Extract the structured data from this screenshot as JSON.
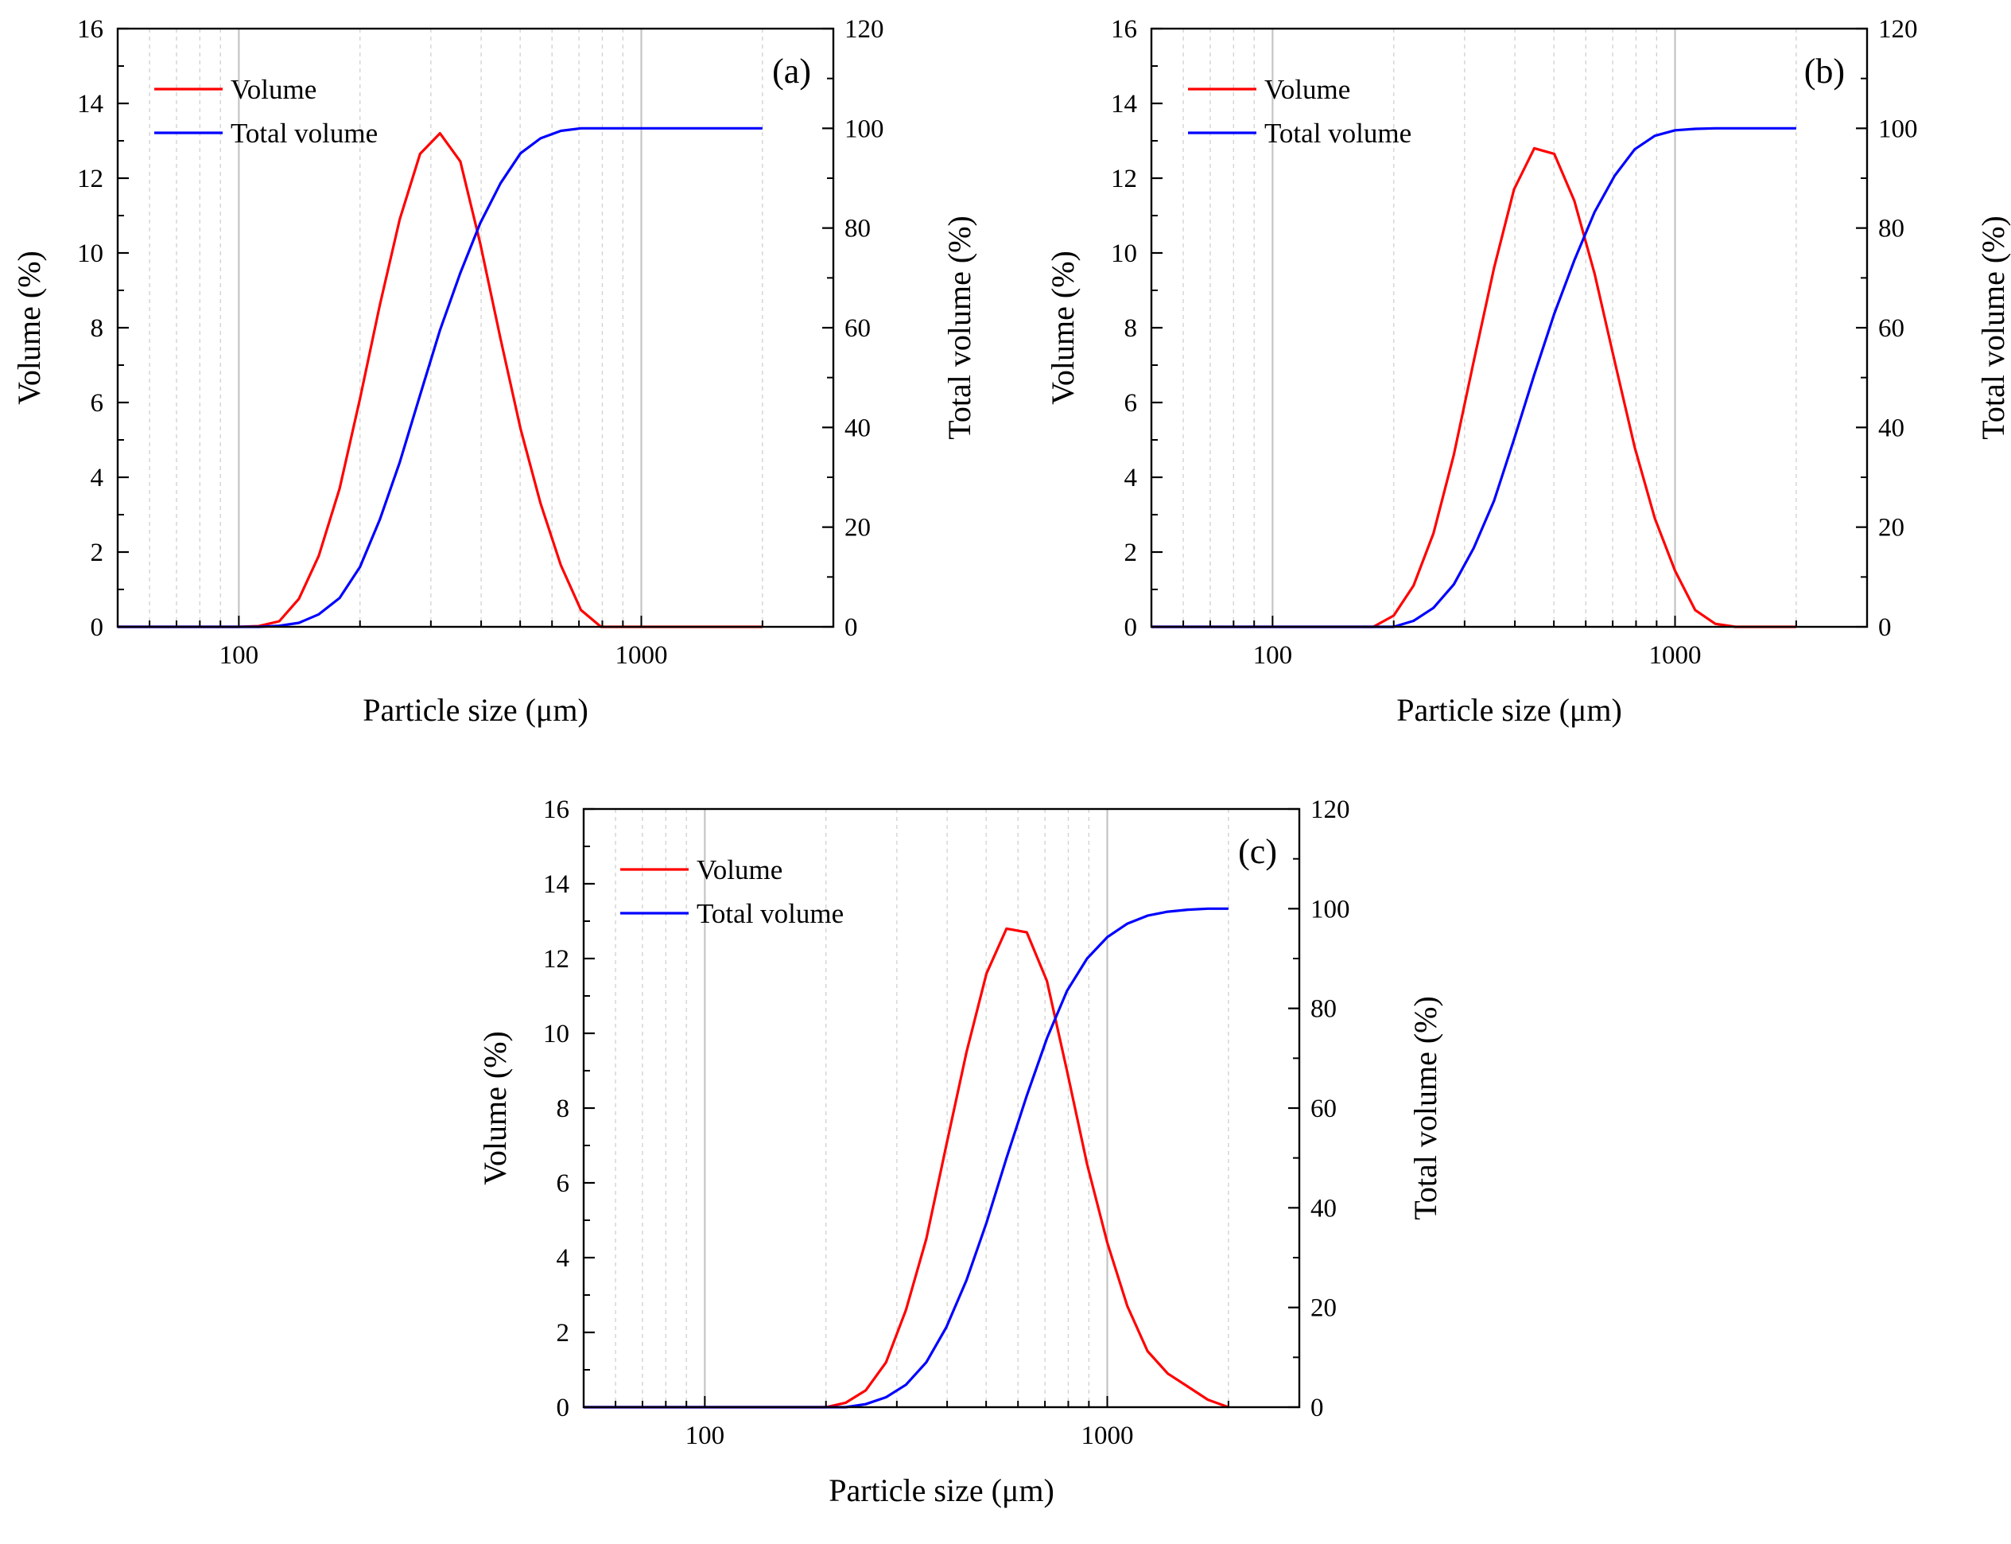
{
  "chart_data": [
    {
      "type": "line",
      "panel_label": "(a)",
      "xlabel": "Particle size (μm)",
      "ylabel": "Volume (%)",
      "y2label": "Total volume (%)",
      "xscale": "log",
      "xlim": [
        50,
        3000
      ],
      "ylim": [
        0,
        16
      ],
      "y2lim": [
        0,
        120
      ],
      "yticks": [
        "0",
        "2",
        "4",
        "6",
        "8",
        "10",
        "12",
        "14",
        "16"
      ],
      "y2ticks": [
        "0",
        "20",
        "40",
        "60",
        "80",
        "100",
        "120"
      ],
      "xticks": [
        "100",
        "1000"
      ],
      "grid": "vertical",
      "legend_position": "top-left",
      "series": [
        {
          "name": "Volume",
          "color": "#ff0000",
          "axis": "left",
          "x": [
            50,
            100,
            112,
            126,
            141,
            158,
            178,
            200,
            224,
            251,
            282,
            316,
            355,
            398,
            447,
            501,
            562,
            631,
            708,
            794,
            1000,
            2000
          ],
          "y": [
            0,
            0,
            0.02,
            0.15,
            0.75,
            1.9,
            3.7,
            6.1,
            8.6,
            10.9,
            12.65,
            13.2,
            12.45,
            10.25,
            7.7,
            5.3,
            3.3,
            1.65,
            0.45,
            0,
            0,
            0
          ]
        },
        {
          "name": "Total volume",
          "color": "#0000ff",
          "axis": "right",
          "x": [
            50,
            112,
            126,
            141,
            158,
            178,
            200,
            224,
            251,
            282,
            316,
            355,
            398,
            447,
            501,
            562,
            631,
            708,
            794,
            2000
          ],
          "y": [
            0,
            0,
            0.2,
            0.8,
            2.5,
            5.8,
            12,
            21.5,
            33,
            46.5,
            59.5,
            71,
            81,
            89,
            95,
            98,
            99.5,
            100,
            100,
            100
          ]
        }
      ]
    },
    {
      "type": "line",
      "panel_label": "(b)",
      "xlabel": "Particle size (μm)",
      "ylabel": "Volume (%)",
      "y2label": "Total volume (%)",
      "xscale": "log",
      "xlim": [
        50,
        3000
      ],
      "ylim": [
        0,
        16
      ],
      "y2lim": [
        0,
        120
      ],
      "yticks": [
        "0",
        "2",
        "4",
        "6",
        "8",
        "10",
        "12",
        "14",
        "16"
      ],
      "y2ticks": [
        "0",
        "20",
        "40",
        "60",
        "80",
        "100",
        "120"
      ],
      "xticks": [
        "100",
        "1000"
      ],
      "grid": "vertical",
      "legend_position": "top-left",
      "series": [
        {
          "name": "Volume",
          "color": "#ff0000",
          "axis": "left",
          "x": [
            50,
            178,
            200,
            224,
            251,
            282,
            316,
            355,
            398,
            447,
            501,
            562,
            631,
            708,
            794,
            891,
            1000,
            1122,
            1259,
            1413,
            2000
          ],
          "y": [
            0,
            0,
            0.3,
            1.1,
            2.5,
            4.6,
            7.1,
            9.6,
            11.7,
            12.8,
            12.65,
            11.4,
            9.45,
            7.1,
            4.8,
            2.9,
            1.5,
            0.45,
            0.08,
            0,
            0
          ]
        },
        {
          "name": "Total volume",
          "color": "#0000ff",
          "axis": "right",
          "x": [
            50,
            200,
            224,
            251,
            282,
            316,
            355,
            398,
            447,
            501,
            562,
            631,
            708,
            794,
            891,
            1000,
            1122,
            1259,
            2000
          ],
          "y": [
            0,
            0,
            1.2,
            3.8,
            8.5,
            15.8,
            25.3,
            37.6,
            50.6,
            62.8,
            73.5,
            83.2,
            90.5,
            95.8,
            98.5,
            99.6,
            99.9,
            100,
            100
          ]
        }
      ]
    },
    {
      "type": "line",
      "panel_label": "(c)",
      "xlabel": "Particle size (μm)",
      "ylabel": "Volume (%)",
      "y2label": "Total volume (%)",
      "xscale": "log",
      "xlim": [
        50,
        3000
      ],
      "ylim": [
        0,
        16
      ],
      "y2lim": [
        0,
        120
      ],
      "yticks": [
        "0",
        "2",
        "4",
        "6",
        "8",
        "10",
        "12",
        "14",
        "16"
      ],
      "y2ticks": [
        "0",
        "20",
        "40",
        "60",
        "80",
        "100",
        "120"
      ],
      "xticks": [
        "100",
        "1000"
      ],
      "grid": "vertical",
      "legend_position": "top-left",
      "series": [
        {
          "name": "Volume",
          "color": "#ff0000",
          "axis": "left",
          "x": [
            50,
            200,
            224,
            251,
            282,
            316,
            355,
            398,
            447,
            501,
            562,
            631,
            708,
            794,
            891,
            1000,
            1122,
            1259,
            1413,
            1585,
            1778,
            2000
          ],
          "y": [
            0,
            0,
            0.12,
            0.45,
            1.2,
            2.6,
            4.5,
            7,
            9.5,
            11.6,
            12.8,
            12.7,
            11.4,
            9,
            6.5,
            4.4,
            2.7,
            1.5,
            0.9,
            0.55,
            0.2,
            0
          ]
        },
        {
          "name": "Total volume",
          "color": "#0000ff",
          "axis": "right",
          "x": [
            50,
            224,
            251,
            282,
            316,
            355,
            398,
            447,
            501,
            562,
            631,
            708,
            794,
            891,
            1000,
            1122,
            1259,
            1413,
            1585,
            1778,
            2000
          ],
          "y": [
            0,
            0,
            0.6,
            2,
            4.5,
            9,
            16,
            25.5,
            37,
            50,
            62.5,
            74,
            83.5,
            90,
            94.3,
            97,
            98.6,
            99.4,
            99.8,
            100,
            100
          ]
        }
      ]
    }
  ]
}
